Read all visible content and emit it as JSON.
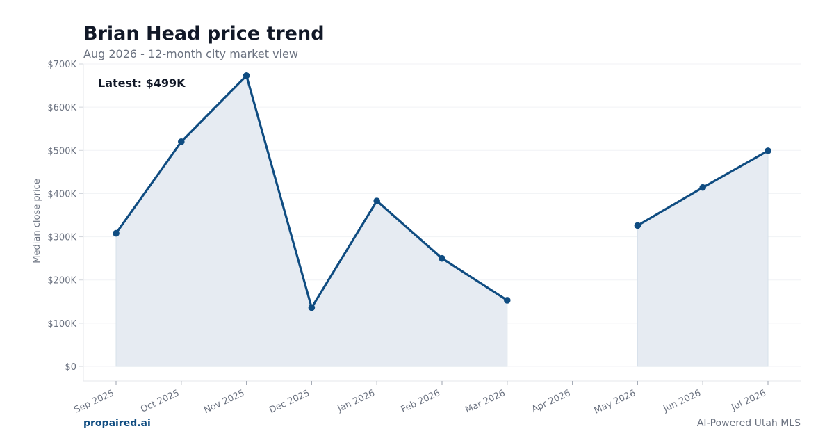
{
  "header": {
    "title": "Brian Head price trend",
    "subtitle": "Aug 2026 - 12-month city market view"
  },
  "footer": {
    "brand": "propaired.ai",
    "tagline": "AI-Powered Utah MLS"
  },
  "colors": {
    "line": "#0f4c81",
    "fill": "#e6ebf2",
    "grid": "#f0f2f5",
    "axis": "#e5e7eb"
  },
  "chart_data": {
    "type": "area",
    "title": "Brian Head price trend",
    "subtitle": "Aug 2026 - 12-month city market view",
    "xlabel": "",
    "ylabel": "Median close price",
    "annotation": "Latest: $499K",
    "categories": [
      "Sep 2025",
      "Oct 2025",
      "Nov 2025",
      "Dec 2025",
      "Jan 2026",
      "Feb 2026",
      "Mar 2026",
      "Apr 2026",
      "May 2026",
      "Jun 2026",
      "Jul 2026"
    ],
    "values": [
      308000,
      520000,
      673000,
      136000,
      383000,
      250000,
      153000,
      null,
      326000,
      414000,
      499000
    ],
    "ylim": [
      0,
      700000
    ],
    "yticks": [
      0,
      100000,
      200000,
      300000,
      400000,
      500000,
      600000,
      700000
    ],
    "ytick_labels": [
      "$0",
      "$100K",
      "$200K",
      "$300K",
      "$400K",
      "$500K",
      "$600K",
      "$700K"
    ],
    "grid": true,
    "legend": "none"
  }
}
